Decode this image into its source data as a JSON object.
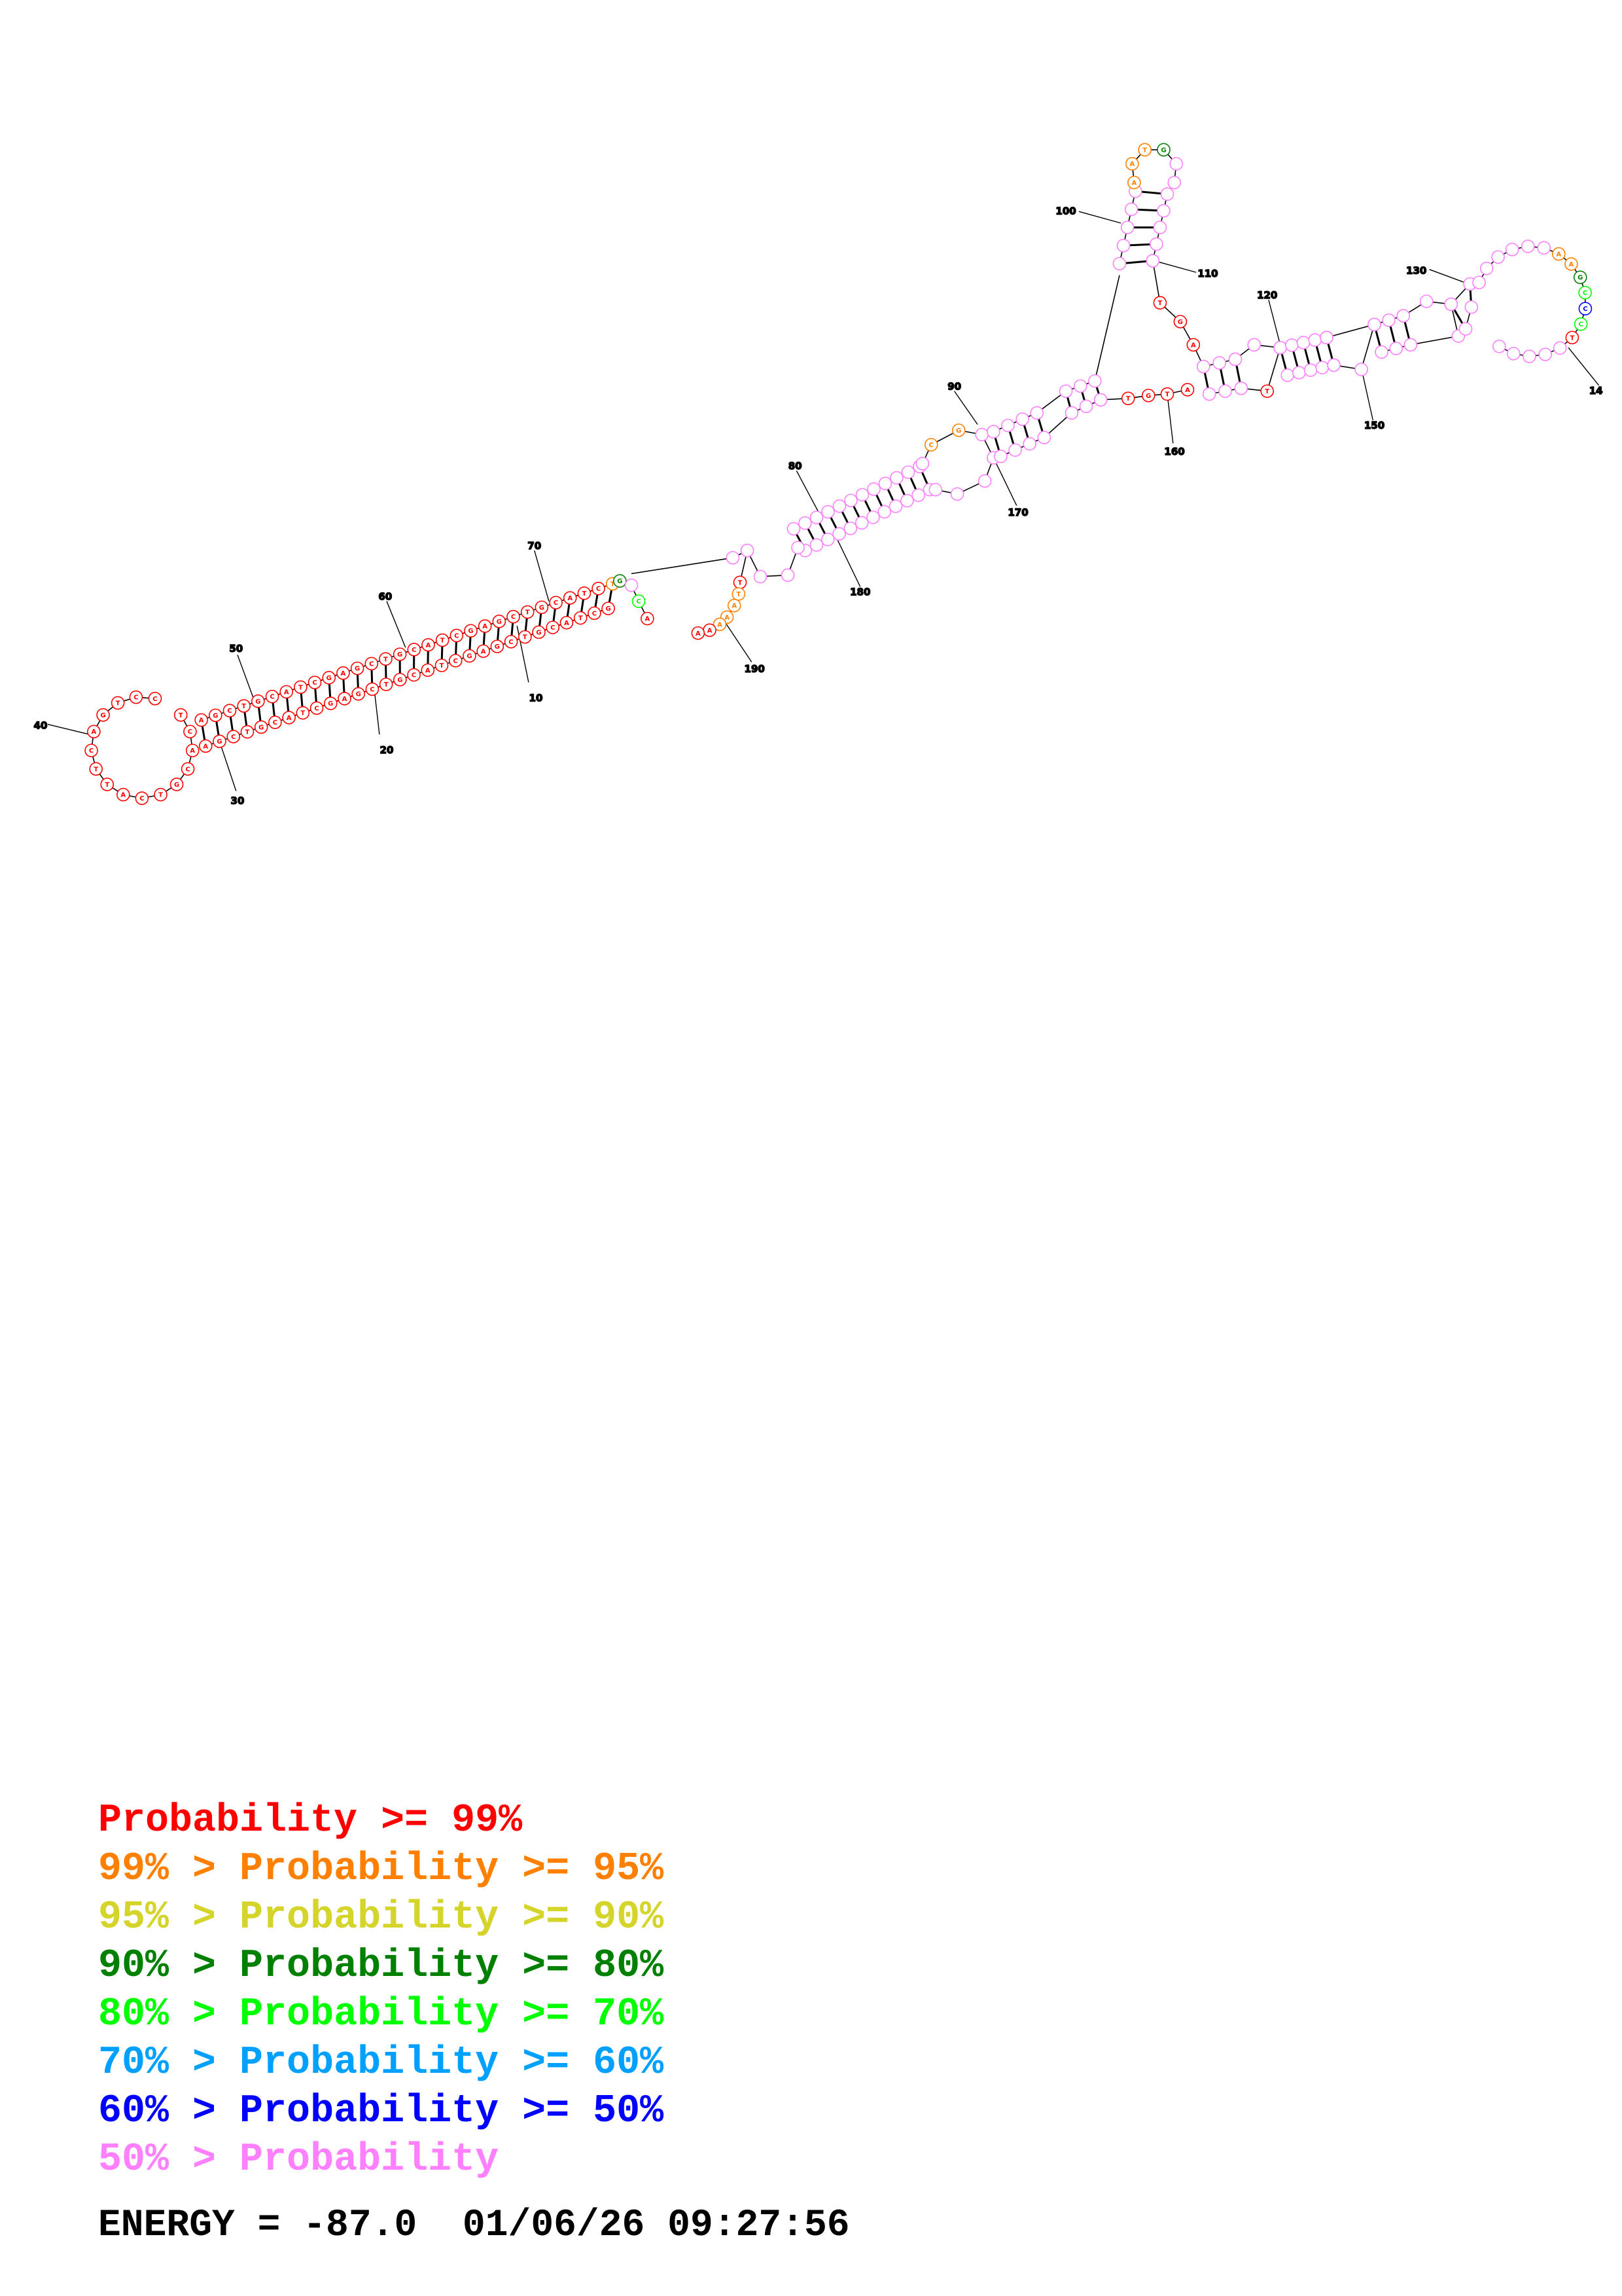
{
  "diagram": {
    "type": "rna-secondary-structure",
    "position_labels": [
      "10",
      "20",
      "30",
      "40",
      "50",
      "60",
      "70",
      "80",
      "90",
      "100",
      "110",
      "120",
      "130",
      "14",
      "150",
      "160",
      "170",
      "180",
      "190"
    ]
  },
  "legend": {
    "colors": {
      "p99": "#ff0000",
      "p95": "#ff8000",
      "p90": "#d4d42a",
      "p80": "#008000",
      "p70": "#00ff00",
      "p60": "#00a0ff",
      "p50": "#0000ff",
      "p_low": "#ff80ff"
    },
    "rows": [
      {
        "prefix": "",
        "label": "Probability >= 99%",
        "color": "#ff0000"
      },
      {
        "prefix": "99% > ",
        "label": "Probability >= 95%",
        "color": "#ff8000"
      },
      {
        "prefix": "95% > ",
        "label": "Probability >= 90%",
        "color": "#d4d42a"
      },
      {
        "prefix": "90% > ",
        "label": "Probability >= 80%",
        "color": "#008000"
      },
      {
        "prefix": "80% > ",
        "label": "Probability >= 70%",
        "color": "#00ff00"
      },
      {
        "prefix": "70% > ",
        "label": "Probability >= 60%",
        "color": "#00a0ff"
      },
      {
        "prefix": "60% > ",
        "label": "Probability >= 50%",
        "color": "#0000ff"
      },
      {
        "prefix": "50% > ",
        "label": "Probability",
        "color": "#ff80ff"
      }
    ]
  },
  "footer": {
    "energy_text": "ENERGY = -87.0",
    "timestamp": "01/06/26 09:27:56"
  }
}
